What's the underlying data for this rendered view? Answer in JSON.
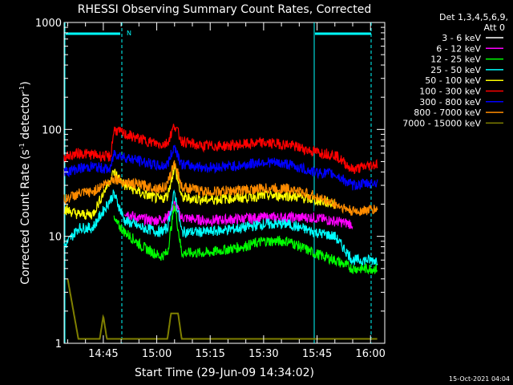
{
  "chart_data": {
    "type": "line",
    "title": "RHESSI Observing Summary Count Rates, Corrected",
    "xlabel": "Start Time (29-Jun-09 14:34:02)",
    "ylabel_main": "Corrected Count Rate (s",
    "ylabel_sup1": "-1",
    "ylabel_mid": " detector",
    "ylabel_sup2": "-1",
    "ylabel_end": ")",
    "y_scale": "log",
    "ylim": [
      1,
      1000
    ],
    "xlim_minutes_after_1434": [
      0,
      90
    ],
    "x_ticks": [
      {
        "label": "14:45",
        "min": 11
      },
      {
        "label": "15:00",
        "min": 26
      },
      {
        "label": "15:15",
        "min": 41
      },
      {
        "label": "15:30",
        "min": 56
      },
      {
        "label": "15:45",
        "min": 71
      },
      {
        "label": "16:00",
        "min": 86
      }
    ],
    "y_ticks": [
      {
        "label": "1000",
        "value": 1000
      },
      {
        "label": "100",
        "value": 100
      },
      {
        "label": "10",
        "value": 10
      },
      {
        "label": "1",
        "value": 1
      }
    ],
    "legend_header_1": "Det 1,3,4,5,6,9,",
    "legend_header_2": "Att 0",
    "night_label": "N",
    "series": [
      {
        "name": "3 - 6 keV",
        "color": "#000000",
        "values": [
          [
            17,
            18
          ],
          [
            20,
            16
          ],
          [
            25,
            15
          ],
          [
            29,
            16
          ],
          [
            31,
            22
          ],
          [
            33,
            17
          ],
          [
            40,
            16
          ],
          [
            56,
            17
          ],
          [
            70,
            17
          ],
          [
            81,
            16
          ]
        ]
      },
      {
        "name": "6 - 12 keV",
        "color": "#ff00ff",
        "values": [
          [
            17,
            17
          ],
          [
            20,
            15
          ],
          [
            25,
            14
          ],
          [
            29,
            15
          ],
          [
            31,
            20
          ],
          [
            33,
            15
          ],
          [
            40,
            14
          ],
          [
            56,
            15
          ],
          [
            70,
            15
          ],
          [
            81,
            13
          ]
        ]
      },
      {
        "name": "12 - 25 keV",
        "color": "#00ff00",
        "values": [
          [
            14,
            14
          ],
          [
            17,
            11
          ],
          [
            22,
            8
          ],
          [
            27,
            6.5
          ],
          [
            29,
            7
          ],
          [
            31,
            20
          ],
          [
            33,
            7
          ],
          [
            40,
            7
          ],
          [
            50,
            8
          ],
          [
            56,
            9
          ],
          [
            63,
            9
          ],
          [
            70,
            7
          ],
          [
            76,
            6
          ],
          [
            81,
            5
          ],
          [
            88,
            5
          ]
        ]
      },
      {
        "name": "25 - 50 keV",
        "color": "#00ffff",
        "values": [
          [
            0,
            8
          ],
          [
            4,
            12
          ],
          [
            8,
            12
          ],
          [
            14,
            25
          ],
          [
            17,
            14
          ],
          [
            22,
            12
          ],
          [
            27,
            11
          ],
          [
            29,
            12
          ],
          [
            31,
            26
          ],
          [
            33,
            11
          ],
          [
            40,
            11
          ],
          [
            50,
            12
          ],
          [
            56,
            13
          ],
          [
            63,
            13
          ],
          [
            70,
            11
          ],
          [
            76,
            10
          ],
          [
            81,
            6
          ],
          [
            88,
            6
          ]
        ]
      },
      {
        "name": "50 - 100 keV",
        "color": "#ffff00",
        "values": [
          [
            0,
            18
          ],
          [
            4,
            16
          ],
          [
            8,
            16
          ],
          [
            14,
            40
          ],
          [
            17,
            30
          ],
          [
            22,
            25
          ],
          [
            27,
            22
          ],
          [
            29,
            24
          ],
          [
            31,
            45
          ],
          [
            33,
            23
          ],
          [
            40,
            22
          ],
          [
            50,
            23
          ],
          [
            56,
            24
          ],
          [
            63,
            24
          ],
          [
            70,
            22
          ],
          [
            76,
            20
          ]
        ]
      },
      {
        "name": "100 - 300 keV",
        "color": "#ff0000",
        "values": [
          [
            0,
            55
          ],
          [
            4,
            60
          ],
          [
            8,
            58
          ],
          [
            13,
            55
          ],
          [
            14,
            100
          ],
          [
            17,
            90
          ],
          [
            22,
            80
          ],
          [
            27,
            72
          ],
          [
            29,
            75
          ],
          [
            31,
            110
          ],
          [
            33,
            78
          ],
          [
            38,
            70
          ],
          [
            45,
            70
          ],
          [
            56,
            75
          ],
          [
            63,
            72
          ],
          [
            70,
            62
          ],
          [
            76,
            58
          ],
          [
            81,
            42
          ],
          [
            88,
            48
          ]
        ]
      },
      {
        "name": "300 - 800 keV",
        "color": "#0000ff",
        "values": [
          [
            0,
            40
          ],
          [
            4,
            43
          ],
          [
            8,
            45
          ],
          [
            13,
            42
          ],
          [
            14,
            60
          ],
          [
            17,
            55
          ],
          [
            22,
            50
          ],
          [
            27,
            45
          ],
          [
            29,
            47
          ],
          [
            31,
            70
          ],
          [
            33,
            47
          ],
          [
            40,
            44
          ],
          [
            50,
            46
          ],
          [
            56,
            50
          ],
          [
            63,
            47
          ],
          [
            70,
            40
          ],
          [
            76,
            38
          ],
          [
            81,
            30
          ],
          [
            88,
            32
          ]
        ]
      },
      {
        "name": "800 - 7000 keV",
        "color": "#ff8c00",
        "values": [
          [
            0,
            22
          ],
          [
            4,
            25
          ],
          [
            8,
            26
          ],
          [
            14,
            35
          ],
          [
            17,
            32
          ],
          [
            22,
            30
          ],
          [
            27,
            28
          ],
          [
            29,
            30
          ],
          [
            31,
            50
          ],
          [
            33,
            29
          ],
          [
            40,
            26
          ],
          [
            50,
            27
          ],
          [
            56,
            28
          ],
          [
            63,
            28
          ],
          [
            70,
            24
          ],
          [
            76,
            20
          ],
          [
            81,
            17
          ],
          [
            88,
            18
          ]
        ]
      },
      {
        "name": "7000 - 15000 keV",
        "color": "#808000",
        "values": [
          [
            1,
            4
          ],
          [
            4,
            1.1
          ],
          [
            10,
            1.1
          ],
          [
            11,
            1.8
          ],
          [
            12,
            1.1
          ],
          [
            29,
            1.1
          ],
          [
            30,
            1.9
          ],
          [
            32,
            1.9
          ],
          [
            33,
            1.1
          ],
          [
            88,
            1.1
          ]
        ]
      }
    ]
  },
  "footer_timestamp": "15-Oct-2021 04:04"
}
